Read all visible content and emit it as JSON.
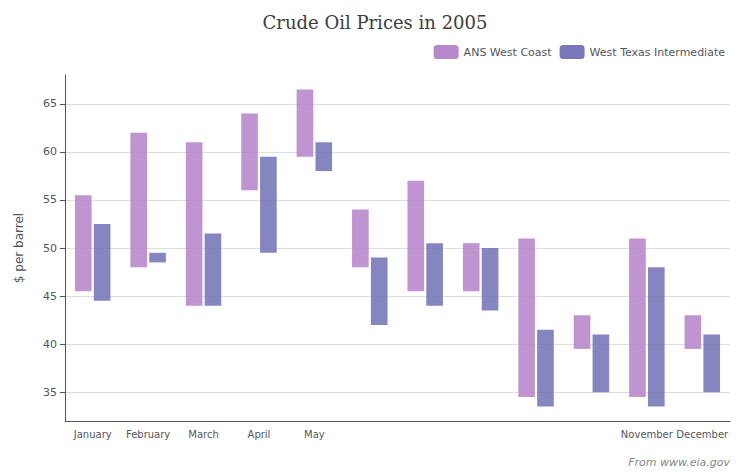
{
  "chart_data": {
    "type": "bar",
    "title": "Crude Oil Prices in 2005",
    "ylabel": "$ per barrel",
    "annotations": [
      "From www.eia.gov"
    ],
    "categories": [
      "January",
      "February",
      "March",
      "April",
      "May",
      null,
      null,
      null,
      null,
      null,
      "November",
      "December"
    ],
    "series": [
      {
        "name": "ANS West Coast",
        "color": "#b888cc",
        "values": [
          [
            45.5,
            55.5
          ],
          [
            48.0,
            62.0
          ],
          [
            44.0,
            61.0
          ],
          [
            56.0,
            64.0
          ],
          [
            59.5,
            66.5
          ],
          [
            48.0,
            54.0
          ],
          [
            45.5,
            57.0
          ],
          [
            45.5,
            50.5
          ],
          [
            34.5,
            51.0
          ],
          [
            39.5,
            43.0
          ],
          [
            34.5,
            51.0
          ],
          [
            39.5,
            43.0
          ]
        ]
      },
      {
        "name": "West Texas Intermediate",
        "color": "#7878b8",
        "values": [
          [
            44.5,
            52.5
          ],
          [
            48.5,
            49.5
          ],
          [
            44.0,
            51.5
          ],
          [
            49.5,
            59.5
          ],
          [
            58.0,
            61.0
          ],
          [
            42.0,
            49.0
          ],
          [
            44.0,
            50.5
          ],
          [
            43.5,
            50.0
          ],
          [
            33.5,
            41.5
          ],
          [
            35.0,
            41.0
          ],
          [
            33.5,
            48.0
          ],
          [
            35.0,
            41.0
          ]
        ]
      }
    ],
    "ylim": [
      32,
      68
    ],
    "yticks": [
      35,
      40,
      45,
      50,
      55,
      60,
      65
    ],
    "grid": true,
    "legend": "upper right"
  }
}
